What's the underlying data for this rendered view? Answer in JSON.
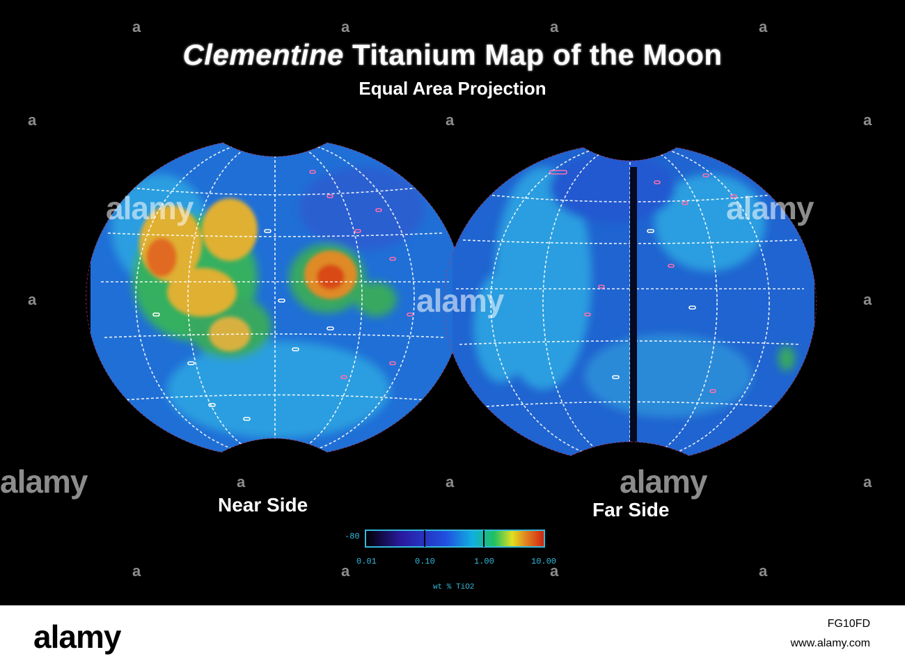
{
  "title": {
    "italic": "Clementine",
    "rest": "Titanium Map of the Moon"
  },
  "subtitle": "Equal Area Projection",
  "maps": [
    {
      "label": "Near Side"
    },
    {
      "label": "Far Side"
    }
  ],
  "colorbar": {
    "low_label": "-80",
    "ticks": [
      "0.01",
      "0.10",
      "1.00",
      "10.00"
    ],
    "unit": "wt % TiO2",
    "colors": [
      "#000000",
      "#2a1aa0",
      "#2050e0",
      "#10b0e0",
      "#20c060",
      "#e0e020",
      "#e08020",
      "#d02010"
    ]
  },
  "watermark": {
    "text": "alamy",
    "mark": "a"
  },
  "footer": {
    "brand": "alamy",
    "image_code": "FG10FD",
    "site": "www.alamy.com"
  },
  "colors": {
    "background": "#000000",
    "ocean_blue": "#1f6fd6",
    "high_ti_orange": "#e6801e",
    "grid": "#ffffff",
    "crater_pink": "#ff5fa0"
  }
}
